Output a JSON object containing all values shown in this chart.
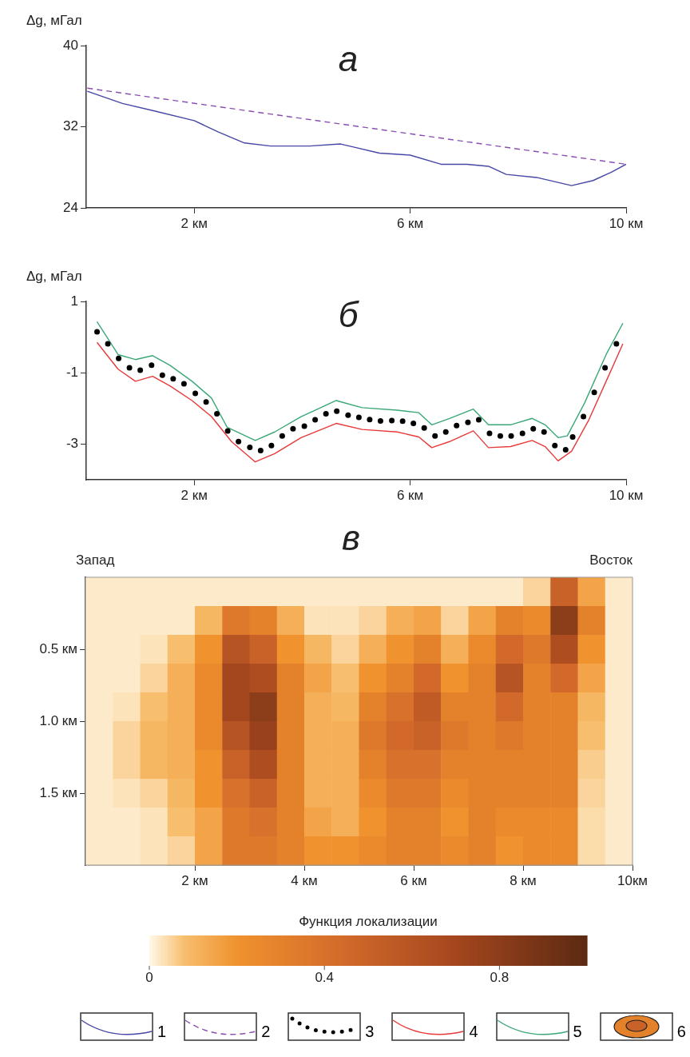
{
  "chart_data": [
    {
      "type": "line",
      "title": "а",
      "ylabel": "Δg, мГал",
      "xlim": [
        0,
        10
      ],
      "ylim": [
        24,
        40
      ],
      "yticks": [
        24,
        32,
        40
      ],
      "xticks": [
        {
          "value": 2,
          "label": "2 км"
        },
        {
          "value": 6,
          "label": "6 км"
        },
        {
          "value": 10,
          "label": "10 км"
        }
      ],
      "legend": "bottom",
      "series": [
        {
          "name": "1",
          "color": "#4646a6",
          "x": [
            0.02,
            0.67,
            1.23,
            2,
            2.44,
            2.93,
            3.41,
            4.14,
            4.71,
            4.95,
            5.43,
            6,
            6.57,
            7.05,
            7.45,
            7.78,
            8.34,
            8.99,
            9.39,
            9.72,
            10
          ],
          "values": [
            35.5,
            34.3,
            33.6,
            32.6,
            31.5,
            30.4,
            30.1,
            30.1,
            30.3,
            30.0,
            29.4,
            29.2,
            28.3,
            28.3,
            28.1,
            27.3,
            27.0,
            26.2,
            26.7,
            27.5,
            28.3
          ]
        },
        {
          "name": "2",
          "color": "#8a4fb0",
          "line_style": "dashed",
          "x": [
            0.02,
            10
          ],
          "values": [
            35.8,
            28.3
          ]
        }
      ]
    },
    {
      "type": "line",
      "title": "б",
      "ylabel": "Δg, мГал",
      "xlim": [
        0,
        10
      ],
      "ylim": [
        -4,
        1
      ],
      "yticks": [
        -3,
        -1,
        1
      ],
      "xticks": [
        {
          "value": 2,
          "label": "2 км"
        },
        {
          "value": 6,
          "label": "6 км"
        },
        {
          "value": 10,
          "label": "10 км"
        }
      ],
      "legend": "bottom",
      "series": [
        {
          "name": "3",
          "type": "scatter",
          "marker": "circle",
          "color": "#000000",
          "x": [
            0.2,
            0.4,
            0.6,
            0.8,
            1.0,
            1.21,
            1.41,
            1.61,
            1.81,
            2.02,
            2.22,
            2.42,
            2.62,
            2.82,
            3.03,
            3.23,
            3.43,
            3.63,
            3.83,
            4.04,
            4.24,
            4.44,
            4.64,
            4.85,
            5.05,
            5.25,
            5.45,
            5.66,
            5.86,
            6.06,
            6.26,
            6.46,
            6.66,
            6.86,
            7.07,
            7.27,
            7.47,
            7.67,
            7.87,
            8.08,
            8.28,
            8.48,
            8.68,
            8.88,
            9.01,
            9.21,
            9.41,
            9.61,
            9.82
          ],
          "values": [
            0.15,
            -0.19,
            -0.6,
            -0.86,
            -0.93,
            -0.79,
            -1.07,
            -1.17,
            -1.31,
            -1.58,
            -1.82,
            -2.15,
            -2.63,
            -2.93,
            -3.09,
            -3.18,
            -3.04,
            -2.77,
            -2.57,
            -2.5,
            -2.32,
            -2.15,
            -2.08,
            -2.19,
            -2.25,
            -2.31,
            -2.35,
            -2.34,
            -2.36,
            -2.42,
            -2.55,
            -2.77,
            -2.66,
            -2.48,
            -2.39,
            -2.32,
            -2.7,
            -2.77,
            -2.77,
            -2.7,
            -2.57,
            -2.66,
            -3.04,
            -3.16,
            -2.8,
            -2.23,
            -1.55,
            -0.86,
            -0.19
          ]
        },
        {
          "name": "4",
          "color": "#e8393a",
          "x": [
            0.2,
            0.59,
            0.91,
            1.23,
            1.55,
            1.96,
            2.32,
            2.69,
            3.13,
            3.49,
            3.98,
            4.63,
            5.11,
            5.76,
            6.16,
            6.4,
            6.73,
            7.17,
            7.45,
            7.86,
            8.26,
            8.5,
            8.74,
            8.99,
            9.31,
            9.63,
            9.94
          ],
          "values": [
            -0.15,
            -0.9,
            -1.24,
            -1.1,
            -1.37,
            -1.78,
            -2.23,
            -2.93,
            -3.5,
            -3.27,
            -2.82,
            -2.42,
            -2.59,
            -2.66,
            -2.8,
            -3.1,
            -2.93,
            -2.63,
            -3.1,
            -3.07,
            -2.9,
            -3.07,
            -3.47,
            -3.2,
            -2.32,
            -1.24,
            -0.19
          ]
        },
        {
          "name": "5",
          "color": "#3aa876",
          "x": [
            0.2,
            0.59,
            0.91,
            1.23,
            1.55,
            1.96,
            2.32,
            2.61,
            3.13,
            3.49,
            3.98,
            4.63,
            5.11,
            5.76,
            6.16,
            6.4,
            6.73,
            7.17,
            7.45,
            7.86,
            8.26,
            8.5,
            8.74,
            8.91,
            9.23,
            9.63,
            9.94
          ],
          "values": [
            0.43,
            -0.49,
            -0.63,
            -0.52,
            -0.79,
            -1.24,
            -1.71,
            -2.53,
            -2.9,
            -2.66,
            -2.23,
            -1.78,
            -1.98,
            -2.05,
            -2.12,
            -2.46,
            -2.28,
            -2.02,
            -2.46,
            -2.46,
            -2.28,
            -2.46,
            -2.82,
            -2.77,
            -1.85,
            -0.49,
            0.39
          ]
        }
      ]
    },
    {
      "type": "heatmap",
      "title": "в",
      "clabel": "Функция локализации",
      "annotations": [
        "Запад",
        "Восток",
        "6"
      ],
      "xlim": [
        0,
        10
      ],
      "ylim": [
        2,
        0
      ],
      "xticks": [
        {
          "value": 2,
          "label": "2 км"
        },
        {
          "value": 4,
          "label": "4 км"
        },
        {
          "value": 6,
          "label": "6 км"
        },
        {
          "value": 8,
          "label": "8 км"
        },
        {
          "value": 10,
          "label": "10км"
        }
      ],
      "yticks": [
        {
          "value": 0.5,
          "label": "0.5 км"
        },
        {
          "value": 1.0,
          "label": "1.0 км"
        },
        {
          "value": 1.5,
          "label": "1.5 км"
        }
      ],
      "clim": [
        0,
        1
      ],
      "cticks": [
        0,
        0.4,
        0.8
      ],
      "x": [
        0.25,
        0.75,
        1.25,
        1.75,
        2.25,
        2.75,
        3.25,
        3.75,
        4.25,
        4.75,
        5.25,
        5.75,
        6.25,
        6.75,
        7.25,
        7.75,
        8.25,
        8.75,
        9.25,
        9.75
      ],
      "y": [
        0.1,
        0.3,
        0.5,
        0.7,
        0.9,
        1.1,
        1.3,
        1.5,
        1.7,
        1.9
      ],
      "cells": [
        [
          0.02,
          0.02,
          0.02,
          0.02,
          0.02,
          0.02,
          0.02,
          0.02,
          0.02,
          0.02,
          0.02,
          0.02,
          0.02,
          0.02,
          0.02,
          0.02,
          0.05,
          0.5,
          0.15,
          0.02
        ],
        [
          0.02,
          0.02,
          0.02,
          0.02,
          0.1,
          0.35,
          0.3,
          0.12,
          0.03,
          0.03,
          0.05,
          0.12,
          0.15,
          0.05,
          0.15,
          0.3,
          0.25,
          0.8,
          0.3,
          0.02
        ],
        [
          0.02,
          0.02,
          0.03,
          0.08,
          0.2,
          0.6,
          0.5,
          0.2,
          0.1,
          0.05,
          0.12,
          0.2,
          0.3,
          0.12,
          0.25,
          0.45,
          0.35,
          0.65,
          0.2,
          0.02
        ],
        [
          0.02,
          0.02,
          0.05,
          0.12,
          0.25,
          0.7,
          0.65,
          0.3,
          0.15,
          0.08,
          0.2,
          0.3,
          0.45,
          0.2,
          0.3,
          0.6,
          0.3,
          0.45,
          0.15,
          0.02
        ],
        [
          0.02,
          0.03,
          0.08,
          0.12,
          0.25,
          0.7,
          0.8,
          0.3,
          0.12,
          0.1,
          0.3,
          0.4,
          0.55,
          0.3,
          0.3,
          0.45,
          0.3,
          0.3,
          0.1,
          0.02
        ],
        [
          0.02,
          0.05,
          0.1,
          0.12,
          0.25,
          0.6,
          0.75,
          0.3,
          0.12,
          0.12,
          0.35,
          0.45,
          0.5,
          0.35,
          0.3,
          0.35,
          0.3,
          0.3,
          0.08,
          0.02
        ],
        [
          0.02,
          0.05,
          0.1,
          0.12,
          0.2,
          0.5,
          0.65,
          0.3,
          0.12,
          0.12,
          0.3,
          0.4,
          0.4,
          0.3,
          0.3,
          0.3,
          0.3,
          0.3,
          0.06,
          0.02
        ],
        [
          0.02,
          0.03,
          0.05,
          0.1,
          0.2,
          0.4,
          0.5,
          0.3,
          0.12,
          0.12,
          0.25,
          0.35,
          0.35,
          0.25,
          0.3,
          0.3,
          0.3,
          0.3,
          0.05,
          0.02
        ],
        [
          0.02,
          0.02,
          0.03,
          0.08,
          0.15,
          0.35,
          0.4,
          0.3,
          0.15,
          0.12,
          0.2,
          0.3,
          0.3,
          0.2,
          0.3,
          0.25,
          0.25,
          0.25,
          0.04,
          0.02
        ],
        [
          0.02,
          0.02,
          0.03,
          0.05,
          0.15,
          0.35,
          0.35,
          0.3,
          0.2,
          0.2,
          0.25,
          0.3,
          0.3,
          0.25,
          0.3,
          0.2,
          0.25,
          0.25,
          0.04,
          0.02
        ]
      ]
    }
  ]
}
